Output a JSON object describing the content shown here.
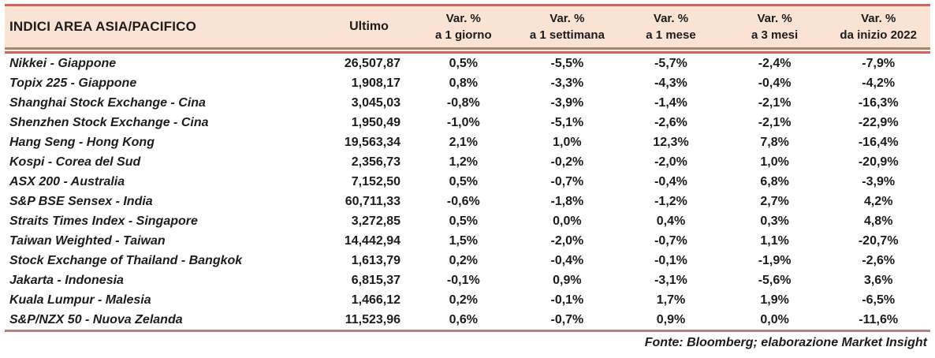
{
  "chart_data": {
    "type": "table",
    "title": "INDICI AREA ASIA/PACIFICO",
    "columns": [
      "INDICI AREA ASIA/PACIFICO",
      "Ultimo",
      "Var. % a 1 giorno",
      "Var. % a 1 settimana",
      "Var. % a 1 mese",
      "Var. % a 3 mesi",
      "Var. % da inizio 2022"
    ],
    "rows": [
      [
        "Nikkei - Giappone",
        "26,507,87",
        "0,5%",
        "-5,5%",
        "-5,7%",
        "-2,4%",
        "-7,9%"
      ],
      [
        "Topix 225 - Giappone",
        "1,908,17",
        "0,8%",
        "-3,3%",
        "-4,3%",
        "-0,4%",
        "-4,2%"
      ],
      [
        "Shanghai Stock Exchange - Cina",
        "3,045,03",
        "-0,8%",
        "-3,9%",
        "-1,4%",
        "-2,1%",
        "-16,3%"
      ],
      [
        "Shenzhen Stock Exchange - Cina",
        "1,950,49",
        "-1,0%",
        "-5,1%",
        "-2,6%",
        "-2,1%",
        "-22,9%"
      ],
      [
        "Hang Seng - Hong Kong",
        "19,563,34",
        "2,1%",
        "1,0%",
        "12,3%",
        "7,8%",
        "-16,4%"
      ],
      [
        "Kospi - Corea del Sud",
        "2,356,73",
        "1,2%",
        "-0,2%",
        "-2,0%",
        "1,0%",
        "-20,9%"
      ],
      [
        "ASX 200 - Australia",
        "7,152,50",
        "0,5%",
        "-0,7%",
        "-0,4%",
        "6,8%",
        "-3,9%"
      ],
      [
        "S&P BSE Sensex - India",
        "60,711,33",
        "-0,6%",
        "-1,8%",
        "-1,2%",
        "2,7%",
        "4,2%"
      ],
      [
        "Straits Times Index - Singapore",
        "3,272,85",
        "0,5%",
        "0,0%",
        "0,4%",
        "0,3%",
        "4,8%"
      ],
      [
        "Taiwan Weighted - Taiwan",
        "14,442,94",
        "1,5%",
        "-2,0%",
        "-0,7%",
        "1,1%",
        "-20,7%"
      ],
      [
        "Stock Exchange of Thailand - Bangkok",
        "1,613,79",
        "0,2%",
        "-0,4%",
        "-0,1%",
        "-1,9%",
        "-2,6%"
      ],
      [
        "Jakarta - Indonesia",
        "6,815,37",
        "-0,1%",
        "0,9%",
        "-3,1%",
        "-5,6%",
        "3,6%"
      ],
      [
        "Kuala Lumpur - Malesia",
        "1,466,12",
        "0,2%",
        "-0,1%",
        "1,7%",
        "1,9%",
        "-6,5%"
      ],
      [
        "S&P/NZX 50 - Nuova Zelanda",
        "11,523,96",
        "0,6%",
        "-0,7%",
        "0,9%",
        "0,0%",
        "-11,6%"
      ]
    ]
  },
  "table": {
    "title_col": "INDICI AREA ASIA/PACIFICO",
    "col_ultimo": "Ultimo",
    "var_cols": [
      {
        "line1": "Var. %",
        "line2": "a 1 giorno"
      },
      {
        "line1": "Var. %",
        "line2": "a 1 settimana"
      },
      {
        "line1": "Var. %",
        "line2": "a 1 mese"
      },
      {
        "line1": "Var. %",
        "line2": "a 3 mesi"
      },
      {
        "line1": "Var. %",
        "line2": "da inizio 2022"
      }
    ],
    "rows": [
      {
        "name": "Nikkei - Giappone",
        "values": [
          "26,507,87",
          "0,5%",
          "-5,5%",
          "-5,7%",
          "-2,4%",
          "-7,9%"
        ]
      },
      {
        "name": "Topix 225 - Giappone",
        "values": [
          "1,908,17",
          "0,8%",
          "-3,3%",
          "-4,3%",
          "-0,4%",
          "-4,2%"
        ]
      },
      {
        "name": "Shanghai Stock Exchange - Cina",
        "values": [
          "3,045,03",
          "-0,8%",
          "-3,9%",
          "-1,4%",
          "-2,1%",
          "-16,3%"
        ]
      },
      {
        "name": "Shenzhen Stock Exchange - Cina",
        "values": [
          "1,950,49",
          "-1,0%",
          "-5,1%",
          "-2,6%",
          "-2,1%",
          "-22,9%"
        ]
      },
      {
        "name": "Hang Seng - Hong Kong",
        "values": [
          "19,563,34",
          "2,1%",
          "1,0%",
          "12,3%",
          "7,8%",
          "-16,4%"
        ]
      },
      {
        "name": "Kospi - Corea del Sud",
        "values": [
          "2,356,73",
          "1,2%",
          "-0,2%",
          "-2,0%",
          "1,0%",
          "-20,9%"
        ]
      },
      {
        "name": "ASX 200 - Australia",
        "values": [
          "7,152,50",
          "0,5%",
          "-0,7%",
          "-0,4%",
          "6,8%",
          "-3,9%"
        ]
      },
      {
        "name": "S&P BSE Sensex - India",
        "values": [
          "60,711,33",
          "-0,6%",
          "-1,8%",
          "-1,2%",
          "2,7%",
          "4,2%"
        ]
      },
      {
        "name": "Straits Times Index - Singapore",
        "values": [
          "3,272,85",
          "0,5%",
          "0,0%",
          "0,4%",
          "0,3%",
          "4,8%"
        ]
      },
      {
        "name": "Taiwan Weighted - Taiwan",
        "values": [
          "14,442,94",
          "1,5%",
          "-2,0%",
          "-0,7%",
          "1,1%",
          "-20,7%"
        ]
      },
      {
        "name": "Stock Exchange of Thailand - Bangkok",
        "values": [
          "1,613,79",
          "0,2%",
          "-0,4%",
          "-0,1%",
          "-1,9%",
          "-2,6%"
        ]
      },
      {
        "name": "Jakarta - Indonesia",
        "values": [
          "6,815,37",
          "-0,1%",
          "0,9%",
          "-3,1%",
          "-5,6%",
          "3,6%"
        ]
      },
      {
        "name": "Kuala Lumpur - Malesia",
        "values": [
          "1,466,12",
          "0,2%",
          "-0,1%",
          "1,7%",
          "1,9%",
          "-6,5%"
        ]
      },
      {
        "name": "S&P/NZX 50 - Nuova Zelanda",
        "values": [
          "11,523,96",
          "0,6%",
          "-0,7%",
          "0,9%",
          "0,0%",
          "-11,6%"
        ]
      }
    ]
  },
  "footer": {
    "source": "Fonte: Bloomberg; elaborazione Market Insight"
  },
  "colors": {
    "header_bg": "#fae3d2",
    "line_red": "#d4625c",
    "line_brown": "#a9876b",
    "line_bottom": "#b2837b",
    "text": "#1c1c1c"
  }
}
